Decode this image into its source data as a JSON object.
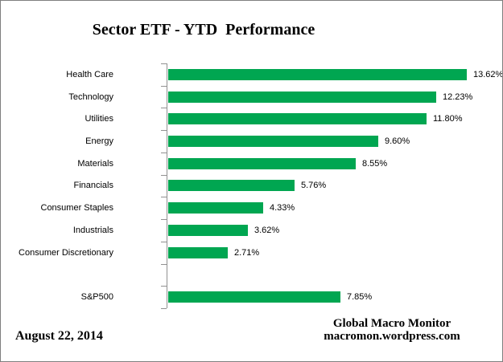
{
  "title": "Sector ETF - YTD  Performance",
  "footer": {
    "date": "August 22, 2014",
    "credit_line1": "Global Macro Monitor",
    "credit_line2": "macromon.wordpress.com"
  },
  "colors": {
    "bar": "#00a651",
    "axis": "#919191",
    "border": "#7f7f7f",
    "text": "#000000"
  },
  "chart_data": {
    "type": "bar",
    "orientation": "horizontal",
    "title": "Sector ETF - YTD  Performance",
    "xlabel": "",
    "ylabel": "",
    "grid": false,
    "legend": false,
    "xlim": [
      0,
      15
    ],
    "bar_color": "#00a651",
    "categories": [
      "Health Care",
      "Technology",
      "Utilities",
      "Energy",
      "Materials",
      "Financials",
      "Consumer Staples",
      "Industrials",
      "Consumer Discretionary",
      "",
      "S&P500"
    ],
    "values": [
      13.62,
      12.23,
      11.8,
      9.6,
      8.55,
      5.76,
      4.33,
      3.62,
      2.71,
      null,
      7.85
    ],
    "data_labels": [
      "13.62%",
      "12.23%",
      "11.80%",
      "9.60%",
      "8.55%",
      "5.76%",
      "4.33%",
      "3.62%",
      "2.71%",
      "",
      "7.85%"
    ]
  }
}
